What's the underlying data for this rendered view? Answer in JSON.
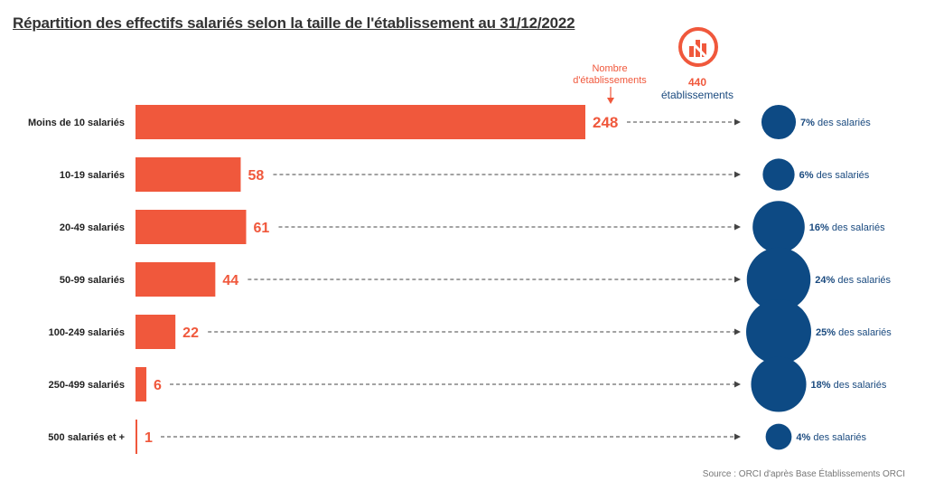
{
  "page": {
    "title": "Répartition des effectifs salariés selon la taille de l'établissement au 31/12/2022",
    "source": "Source : ORCI d'après Base Établissements ORCI",
    "total_value": "440",
    "total_label": "établissements",
    "estab_label_line1": "Nombre",
    "estab_label_line2": "d'établissements",
    "logo_icon": "building-chart-icon"
  },
  "colors": {
    "bar": "#f0583c",
    "bubble": "#0d4a84",
    "bubble_text": "#1a4a7f",
    "label": "#222222",
    "connector": "#444444"
  },
  "chart_data": {
    "type": "bar",
    "orientation": "horizontal",
    "categories": [
      "Moins de 10 salariés",
      "10-19 salariés",
      "20-49 salariés",
      "50-99 salariés",
      "100-249 salariés",
      "250-499 salariés",
      "500 salariés et +"
    ],
    "series": [
      {
        "name": "Nombre d'établissements",
        "values": [
          248,
          58,
          61,
          44,
          22,
          6,
          1
        ]
      }
    ],
    "share_of_employees": {
      "values": [
        7,
        6,
        16,
        24,
        25,
        18,
        4
      ],
      "suffix": "des salariés"
    },
    "xlim": [
      0,
      248
    ],
    "grid": false,
    "legend": "none"
  }
}
